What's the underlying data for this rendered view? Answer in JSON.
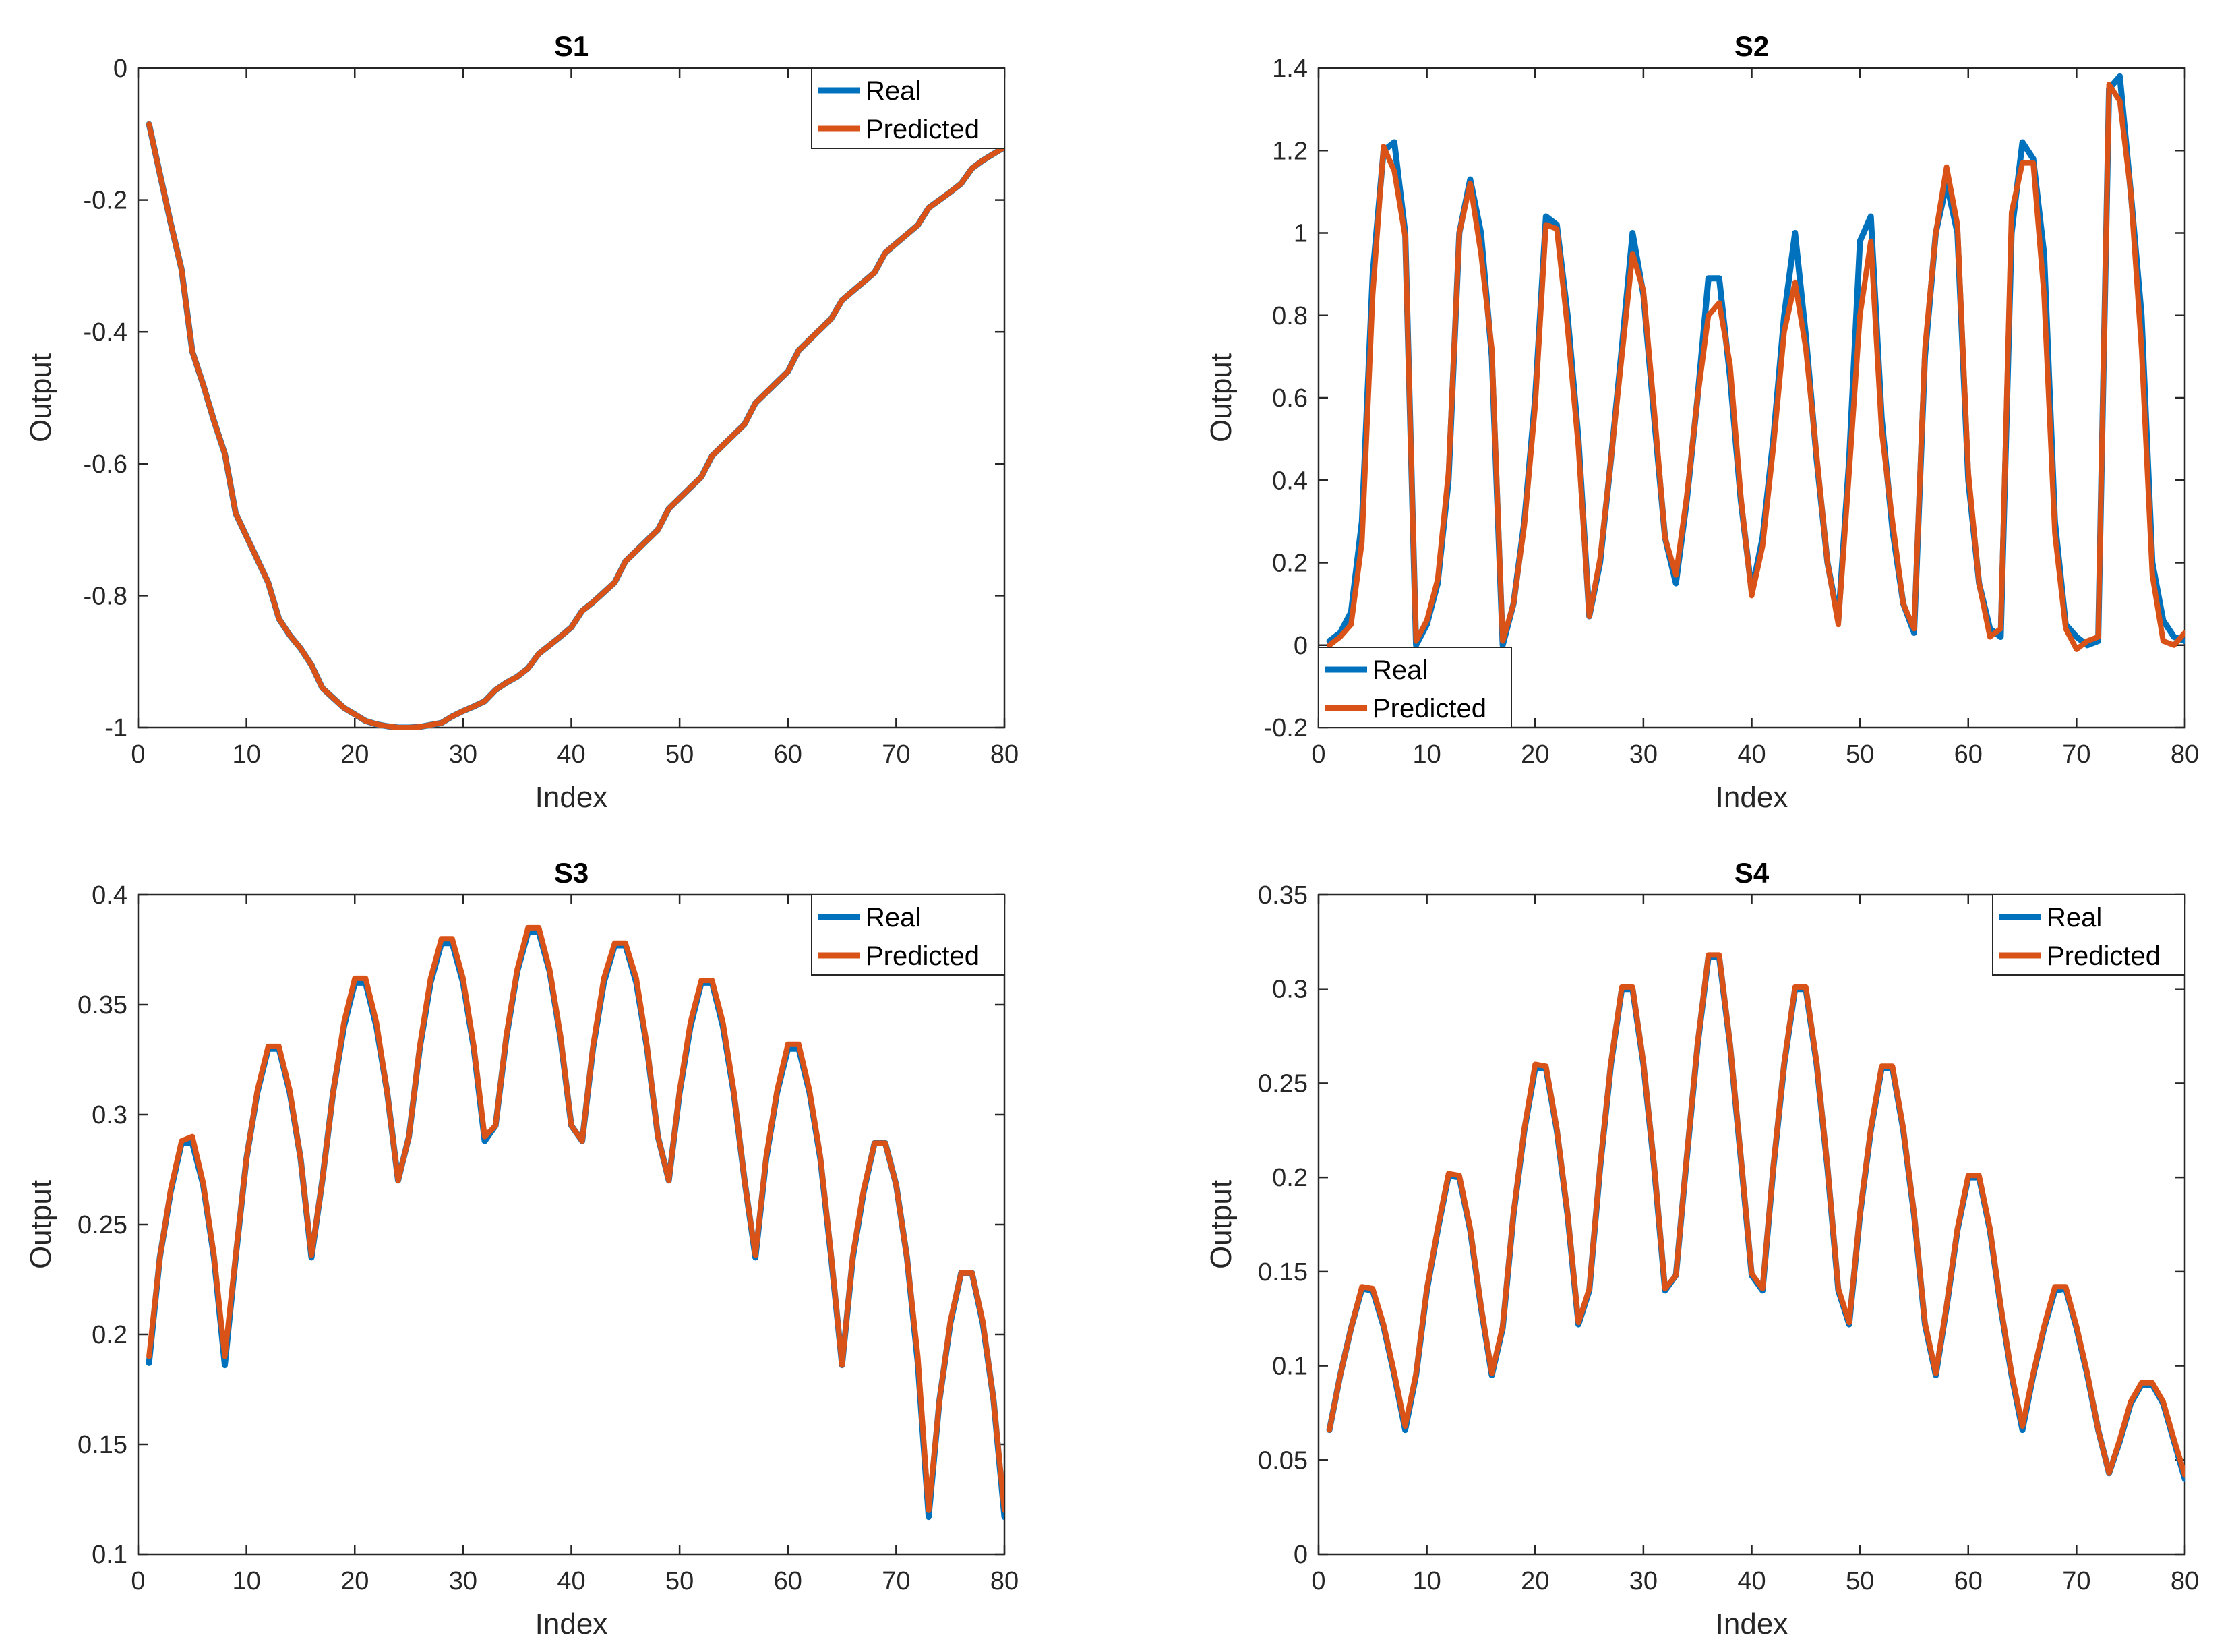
{
  "colors": {
    "real": "#0072BD",
    "predicted": "#D95319",
    "axis": "#262626"
  },
  "chart_data": [
    {
      "type": "line",
      "title": "S1",
      "xlabel": "Index",
      "ylabel": "Output",
      "xlim": [
        0,
        80
      ],
      "ylim": [
        -1,
        0
      ],
      "xticks": [
        0,
        10,
        20,
        30,
        40,
        50,
        60,
        70,
        80
      ],
      "xtick_labels": [
        "0",
        "10",
        "20",
        "30",
        "40",
        "50",
        "60",
        "70",
        "80"
      ],
      "yticks": [
        -1,
        -0.8,
        -0.6,
        -0.4,
        -0.2,
        0
      ],
      "ytick_labels": [
        "-1",
        "-0.8",
        "-0.6",
        "-0.4",
        "-0.2",
        "0"
      ],
      "legend_position": "top-right",
      "x": [
        1,
        2,
        3,
        4,
        5,
        6,
        7,
        8,
        9,
        10,
        11,
        12,
        13,
        14,
        15,
        16,
        17,
        18,
        19,
        20,
        21,
        22,
        23,
        24,
        25,
        26,
        27,
        28,
        29,
        30,
        31,
        32,
        33,
        34,
        35,
        36,
        37,
        38,
        39,
        40,
        41,
        42,
        43,
        44,
        45,
        46,
        47,
        48,
        49,
        50,
        51,
        52,
        53,
        54,
        55,
        56,
        57,
        58,
        59,
        60,
        61,
        62,
        63,
        64,
        65,
        66,
        67,
        68,
        69,
        70,
        71,
        72,
        73,
        74,
        75,
        76,
        77,
        78,
        79,
        80
      ],
      "series": [
        {
          "name": "Real",
          "values": [
            -0.085,
            -0.16,
            -0.235,
            -0.305,
            -0.43,
            -0.48,
            -0.535,
            -0.585,
            -0.675,
            -0.71,
            -0.745,
            -0.78,
            -0.835,
            -0.86,
            -0.88,
            -0.905,
            -0.94,
            -0.955,
            -0.97,
            -0.98,
            -0.99,
            -0.995,
            -0.998,
            -1.0,
            -1.0,
            -0.999,
            -0.996,
            -0.993,
            -0.983,
            -0.975,
            -0.968,
            -0.96,
            -0.943,
            -0.932,
            -0.923,
            -0.91,
            -0.888,
            -0.875,
            -0.862,
            -0.848,
            -0.823,
            -0.81,
            -0.795,
            -0.78,
            -0.748,
            -0.732,
            -0.716,
            -0.7,
            -0.668,
            -0.652,
            -0.636,
            -0.62,
            -0.588,
            -0.572,
            -0.556,
            -0.54,
            -0.508,
            -0.492,
            -0.476,
            -0.46,
            -0.428,
            -0.412,
            -0.396,
            -0.38,
            -0.352,
            -0.338,
            -0.324,
            -0.31,
            -0.28,
            -0.266,
            -0.252,
            -0.238,
            -0.212,
            -0.2,
            -0.188,
            -0.175,
            -0.152,
            -0.14,
            -0.13,
            -0.12
          ]
        },
        {
          "name": "Predicted",
          "values": [
            -0.085,
            -0.16,
            -0.235,
            -0.305,
            -0.43,
            -0.48,
            -0.535,
            -0.585,
            -0.675,
            -0.71,
            -0.745,
            -0.78,
            -0.835,
            -0.86,
            -0.88,
            -0.905,
            -0.94,
            -0.955,
            -0.97,
            -0.98,
            -0.99,
            -0.995,
            -0.998,
            -1.0,
            -1.0,
            -0.999,
            -0.996,
            -0.993,
            -0.983,
            -0.975,
            -0.968,
            -0.96,
            -0.943,
            -0.932,
            -0.923,
            -0.91,
            -0.888,
            -0.875,
            -0.862,
            -0.848,
            -0.823,
            -0.81,
            -0.795,
            -0.78,
            -0.748,
            -0.732,
            -0.716,
            -0.7,
            -0.668,
            -0.652,
            -0.636,
            -0.62,
            -0.588,
            -0.572,
            -0.556,
            -0.54,
            -0.508,
            -0.492,
            -0.476,
            -0.46,
            -0.428,
            -0.412,
            -0.396,
            -0.38,
            -0.352,
            -0.338,
            -0.324,
            -0.31,
            -0.28,
            -0.266,
            -0.252,
            -0.238,
            -0.212,
            -0.2,
            -0.188,
            -0.175,
            -0.152,
            -0.14,
            -0.13,
            -0.12
          ]
        }
      ]
    },
    {
      "type": "line",
      "title": "S2",
      "xlabel": "Index",
      "ylabel": "Output",
      "xlim": [
        0,
        80
      ],
      "ylim": [
        -0.2,
        1.4
      ],
      "xticks": [
        0,
        10,
        20,
        30,
        40,
        50,
        60,
        70,
        80
      ],
      "xtick_labels": [
        "0",
        "10",
        "20",
        "30",
        "40",
        "50",
        "60",
        "70",
        "80"
      ],
      "yticks": [
        -0.2,
        0,
        0.2,
        0.4,
        0.6,
        0.8,
        1,
        1.2,
        1.4
      ],
      "ytick_labels": [
        "-0.2",
        "0",
        "0.2",
        "0.4",
        "0.6",
        "0.8",
        "1",
        "1.2",
        "1.4"
      ],
      "legend_position": "bottom-left",
      "x": [
        1,
        2,
        3,
        4,
        5,
        6,
        7,
        8,
        9,
        10,
        11,
        12,
        13,
        14,
        15,
        16,
        17,
        18,
        19,
        20,
        21,
        22,
        23,
        24,
        25,
        26,
        27,
        28,
        29,
        30,
        31,
        32,
        33,
        34,
        35,
        36,
        37,
        38,
        39,
        40,
        41,
        42,
        43,
        44,
        45,
        46,
        47,
        48,
        49,
        50,
        51,
        52,
        53,
        54,
        55,
        56,
        57,
        58,
        59,
        60,
        61,
        62,
        63,
        64,
        65,
        66,
        67,
        68,
        69,
        70,
        71,
        72,
        73,
        74,
        75,
        76,
        77,
        78,
        79,
        80
      ],
      "series": [
        {
          "name": "Real",
          "values": [
            0.01,
            0.03,
            0.08,
            0.3,
            0.9,
            1.2,
            1.22,
            1.0,
            0.0,
            0.05,
            0.15,
            0.4,
            1.0,
            1.13,
            1.0,
            0.7,
            0.0,
            0.1,
            0.3,
            0.6,
            1.04,
            1.02,
            0.8,
            0.5,
            0.07,
            0.2,
            0.45,
            0.72,
            1.0,
            0.85,
            0.55,
            0.26,
            0.15,
            0.35,
            0.6,
            0.89,
            0.89,
            0.65,
            0.35,
            0.13,
            0.26,
            0.5,
            0.8,
            1.0,
            0.75,
            0.45,
            0.2,
            0.06,
            0.45,
            0.98,
            1.04,
            0.55,
            0.28,
            0.1,
            0.03,
            0.7,
            1.0,
            1.12,
            1.0,
            0.4,
            0.15,
            0.04,
            0.02,
            1.0,
            1.22,
            1.18,
            0.95,
            0.3,
            0.05,
            0.02,
            0.0,
            0.01,
            1.35,
            1.38,
            1.1,
            0.8,
            0.2,
            0.06,
            0.02,
            0.01
          ]
        },
        {
          "name": "Predicted",
          "values": [
            0.0,
            0.02,
            0.05,
            0.25,
            0.85,
            1.21,
            1.15,
            0.99,
            0.01,
            0.06,
            0.16,
            0.42,
            1.0,
            1.12,
            0.95,
            0.72,
            0.01,
            0.1,
            0.29,
            0.58,
            1.02,
            1.01,
            0.77,
            0.48,
            0.07,
            0.21,
            0.45,
            0.7,
            0.95,
            0.86,
            0.57,
            0.26,
            0.17,
            0.36,
            0.6,
            0.8,
            0.83,
            0.68,
            0.36,
            0.12,
            0.24,
            0.48,
            0.76,
            0.88,
            0.72,
            0.46,
            0.2,
            0.05,
            0.42,
            0.8,
            0.98,
            0.52,
            0.3,
            0.1,
            0.04,
            0.72,
            1.0,
            1.16,
            1.02,
            0.42,
            0.15,
            0.02,
            0.04,
            1.05,
            1.17,
            1.17,
            0.85,
            0.27,
            0.04,
            -0.01,
            0.01,
            0.02,
            1.36,
            1.32,
            1.1,
            0.72,
            0.17,
            0.01,
            0.0,
            0.03
          ]
        }
      ]
    },
    {
      "type": "line",
      "title": "S3",
      "xlabel": "Index",
      "ylabel": "Output",
      "xlim": [
        0,
        80
      ],
      "ylim": [
        0.1,
        0.4
      ],
      "xticks": [
        0,
        10,
        20,
        30,
        40,
        50,
        60,
        70,
        80
      ],
      "xtick_labels": [
        "0",
        "10",
        "20",
        "30",
        "40",
        "50",
        "60",
        "70",
        "80"
      ],
      "yticks": [
        0.1,
        0.15,
        0.2,
        0.25,
        0.3,
        0.35,
        0.4
      ],
      "ytick_labels": [
        "0.1",
        "0.15",
        "0.2",
        "0.25",
        "0.3",
        "0.35",
        "0.4"
      ],
      "legend_position": "top-right",
      "x": [
        1,
        2,
        3,
        4,
        5,
        6,
        7,
        8,
        9,
        10,
        11,
        12,
        13,
        14,
        15,
        16,
        17,
        18,
        19,
        20,
        21,
        22,
        23,
        24,
        25,
        26,
        27,
        28,
        29,
        30,
        31,
        32,
        33,
        34,
        35,
        36,
        37,
        38,
        39,
        40,
        41,
        42,
        43,
        44,
        45,
        46,
        47,
        48,
        49,
        50,
        51,
        52,
        53,
        54,
        55,
        56,
        57,
        58,
        59,
        60,
        61,
        62,
        63,
        64,
        65,
        66,
        67,
        68,
        69,
        70,
        71,
        72,
        73,
        74,
        75,
        76,
        77,
        78,
        79,
        80
      ],
      "series": [
        {
          "name": "Real",
          "values": [
            0.187,
            0.235,
            0.265,
            0.287,
            0.287,
            0.268,
            0.235,
            0.186,
            0.235,
            0.28,
            0.31,
            0.33,
            0.33,
            0.31,
            0.28,
            0.235,
            0.27,
            0.31,
            0.34,
            0.36,
            0.36,
            0.34,
            0.31,
            0.27,
            0.29,
            0.33,
            0.36,
            0.378,
            0.378,
            0.36,
            0.33,
            0.288,
            0.295,
            0.335,
            0.365,
            0.383,
            0.383,
            0.365,
            0.335,
            0.295,
            0.288,
            0.33,
            0.36,
            0.377,
            0.377,
            0.36,
            0.33,
            0.29,
            0.27,
            0.31,
            0.34,
            0.36,
            0.36,
            0.34,
            0.31,
            0.27,
            0.235,
            0.28,
            0.31,
            0.33,
            0.33,
            0.31,
            0.28,
            0.235,
            0.186,
            0.235,
            0.265,
            0.287,
            0.287,
            0.268,
            0.235,
            0.187,
            0.117,
            0.17,
            0.205,
            0.228,
            0.228,
            0.205,
            0.17,
            0.117
          ]
        },
        {
          "name": "Predicted",
          "values": [
            0.19,
            0.235,
            0.266,
            0.288,
            0.29,
            0.269,
            0.236,
            0.19,
            0.236,
            0.28,
            0.311,
            0.331,
            0.331,
            0.311,
            0.28,
            0.236,
            0.27,
            0.31,
            0.342,
            0.362,
            0.362,
            0.342,
            0.31,
            0.27,
            0.29,
            0.331,
            0.362,
            0.38,
            0.38,
            0.362,
            0.331,
            0.29,
            0.295,
            0.336,
            0.366,
            0.385,
            0.385,
            0.366,
            0.336,
            0.295,
            0.288,
            0.331,
            0.362,
            0.378,
            0.378,
            0.362,
            0.331,
            0.29,
            0.27,
            0.311,
            0.342,
            0.361,
            0.361,
            0.342,
            0.311,
            0.27,
            0.236,
            0.281,
            0.311,
            0.332,
            0.332,
            0.311,
            0.281,
            0.236,
            0.186,
            0.236,
            0.266,
            0.287,
            0.287,
            0.268,
            0.235,
            0.19,
            0.12,
            0.17,
            0.206,
            0.228,
            0.228,
            0.206,
            0.17,
            0.12
          ]
        }
      ]
    },
    {
      "type": "line",
      "title": "S4",
      "xlabel": "Index",
      "ylabel": "Output",
      "xlim": [
        0,
        80
      ],
      "ylim": [
        0,
        0.35
      ],
      "xticks": [
        0,
        10,
        20,
        30,
        40,
        50,
        60,
        70,
        80
      ],
      "xtick_labels": [
        "0",
        "10",
        "20",
        "30",
        "40",
        "50",
        "60",
        "70",
        "80"
      ],
      "yticks": [
        0,
        0.05,
        0.1,
        0.15,
        0.2,
        0.25,
        0.3,
        0.35
      ],
      "ytick_labels": [
        "0",
        "0.05",
        "0.1",
        "0.15",
        "0.2",
        "0.25",
        "0.3",
        "0.35"
      ],
      "legend_position": "top-right",
      "x": [
        1,
        2,
        3,
        4,
        5,
        6,
        7,
        8,
        9,
        10,
        11,
        12,
        13,
        14,
        15,
        16,
        17,
        18,
        19,
        20,
        21,
        22,
        23,
        24,
        25,
        26,
        27,
        28,
        29,
        30,
        31,
        32,
        33,
        34,
        35,
        36,
        37,
        38,
        39,
        40,
        41,
        42,
        43,
        44,
        45,
        46,
        47,
        48,
        49,
        50,
        51,
        52,
        53,
        54,
        55,
        56,
        57,
        58,
        59,
        60,
        61,
        62,
        63,
        64,
        65,
        66,
        67,
        68,
        69,
        70,
        71,
        72,
        73,
        74,
        75,
        76,
        77,
        78,
        79,
        80
      ],
      "series": [
        {
          "name": "Real",
          "values": [
            0.066,
            0.095,
            0.12,
            0.141,
            0.14,
            0.121,
            0.095,
            0.066,
            0.095,
            0.14,
            0.172,
            0.201,
            0.2,
            0.172,
            0.131,
            0.095,
            0.12,
            0.18,
            0.225,
            0.258,
            0.258,
            0.225,
            0.18,
            0.122,
            0.14,
            0.205,
            0.26,
            0.3,
            0.3,
            0.26,
            0.205,
            0.14,
            0.148,
            0.21,
            0.27,
            0.317,
            0.317,
            0.27,
            0.21,
            0.148,
            0.14,
            0.205,
            0.26,
            0.3,
            0.3,
            0.26,
            0.205,
            0.14,
            0.122,
            0.18,
            0.225,
            0.258,
            0.258,
            0.225,
            0.18,
            0.122,
            0.095,
            0.131,
            0.172,
            0.2,
            0.2,
            0.172,
            0.131,
            0.095,
            0.066,
            0.095,
            0.12,
            0.14,
            0.141,
            0.12,
            0.095,
            0.066,
            0.043,
            0.06,
            0.08,
            0.09,
            0.09,
            0.08,
            0.06,
            0.04
          ]
        },
        {
          "name": "Predicted",
          "values": [
            0.066,
            0.095,
            0.12,
            0.142,
            0.141,
            0.122,
            0.096,
            0.068,
            0.096,
            0.141,
            0.173,
            0.202,
            0.201,
            0.173,
            0.132,
            0.096,
            0.121,
            0.181,
            0.226,
            0.26,
            0.259,
            0.226,
            0.181,
            0.123,
            0.141,
            0.206,
            0.261,
            0.301,
            0.301,
            0.261,
            0.206,
            0.141,
            0.148,
            0.211,
            0.271,
            0.318,
            0.318,
            0.271,
            0.211,
            0.149,
            0.141,
            0.206,
            0.261,
            0.301,
            0.301,
            0.261,
            0.206,
            0.141,
            0.123,
            0.181,
            0.226,
            0.259,
            0.259,
            0.226,
            0.181,
            0.123,
            0.096,
            0.132,
            0.173,
            0.201,
            0.201,
            0.173,
            0.132,
            0.096,
            0.068,
            0.096,
            0.121,
            0.142,
            0.142,
            0.121,
            0.096,
            0.066,
            0.043,
            0.061,
            0.081,
            0.091,
            0.091,
            0.081,
            0.061,
            0.042
          ]
        }
      ]
    }
  ]
}
